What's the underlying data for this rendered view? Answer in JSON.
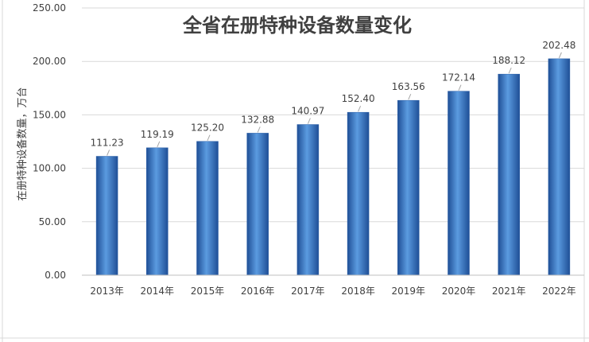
{
  "chart_data": {
    "type": "bar",
    "title": "全省在册特种设备数量变化",
    "xlabel": "",
    "ylabel": "在册特种设备数量，万台",
    "categories": [
      "2013年",
      "2014年",
      "2015年",
      "2016年",
      "2017年",
      "2018年",
      "2019年",
      "2020年",
      "2021年",
      "2022年"
    ],
    "values": [
      111.23,
      119.19,
      125.2,
      132.88,
      140.97,
      152.4,
      163.56,
      172.14,
      188.12,
      202.48
    ],
    "value_labels": [
      "111.23",
      "119.19",
      "125.20",
      "132.88",
      "140.97",
      "152.40",
      "163.56",
      "172.14",
      "188.12",
      "202.48"
    ],
    "ylim": [
      0,
      250
    ],
    "yticks": [
      "0.00",
      "50.00",
      "100.00",
      "150.00",
      "200.00",
      "250.00"
    ],
    "grid": true,
    "colors": {
      "bar_light": "#5b9be0",
      "bar_dark": "#1f4f96",
      "gridline": "#d9d9d9"
    }
  }
}
